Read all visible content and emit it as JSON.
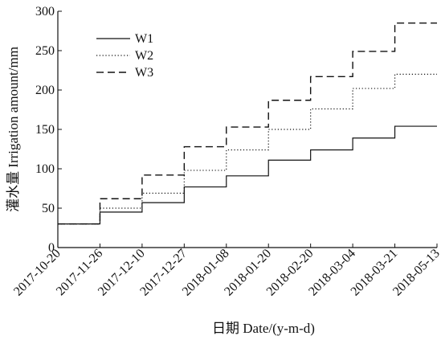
{
  "chart_data": {
    "type": "line",
    "step": true,
    "title": "",
    "xlabel": "日期 Date/(y-m-d)",
    "ylabel": "灌水量 Irrigation amount/mm",
    "ylim": [
      0,
      300
    ],
    "yticks": [
      0,
      50,
      100,
      150,
      200,
      250,
      300
    ],
    "x": [
      "2017-10-20",
      "2017-11-26",
      "2017-12-10",
      "2017-12-27",
      "2018-01-08",
      "2018-01-20",
      "2018-02-20",
      "2018-03-04",
      "2018-03-21",
      "2018-05-13"
    ],
    "grid": false,
    "legend_position": "top-left",
    "series": [
      {
        "name": "W1",
        "line_style": "solid",
        "color": "#111111",
        "values": [
          30,
          45,
          57,
          77,
          91,
          111,
          124,
          139,
          154,
          154
        ]
      },
      {
        "name": "W2",
        "line_style": "dotted",
        "color": "#111111",
        "values": [
          30,
          50,
          69,
          98,
          124,
          150,
          176,
          202,
          220,
          220
        ]
      },
      {
        "name": "W3",
        "line_style": "dashed",
        "color": "#111111",
        "values": [
          30,
          62,
          92,
          128,
          153,
          187,
          217,
          249,
          285,
          285
        ]
      }
    ]
  }
}
